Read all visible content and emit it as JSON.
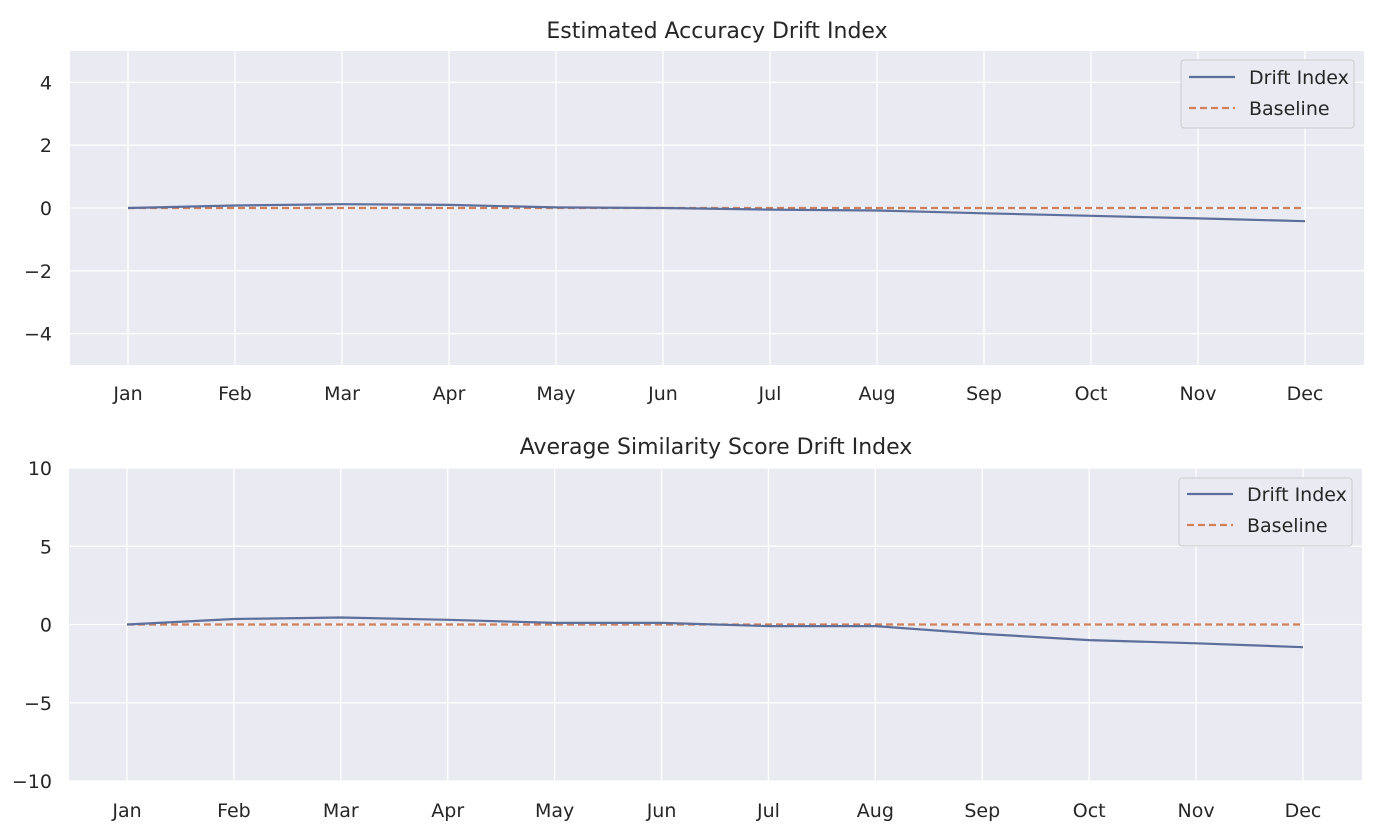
{
  "chart_data": [
    {
      "type": "line",
      "title": "Estimated Accuracy Drift Index",
      "xlabel": "",
      "ylabel": "",
      "categories": [
        "Jan",
        "Feb",
        "Mar",
        "Apr",
        "May",
        "Jun",
        "Jul",
        "Aug",
        "Sep",
        "Oct",
        "Nov",
        "Dec"
      ],
      "ylim": [
        -5,
        5
      ],
      "yticks": [
        4,
        2,
        0,
        -2,
        -4
      ],
      "ytick_labels": [
        "4",
        "2",
        "0",
        "−2",
        "−4"
      ],
      "grid": true,
      "legend_position": "top-right",
      "series": [
        {
          "name": "Drift Index",
          "color": "#5c6f9c",
          "style": "solid",
          "values": [
            0.0,
            0.08,
            0.12,
            0.1,
            0.02,
            0.0,
            -0.05,
            -0.08,
            -0.17,
            -0.25,
            -0.33,
            -0.42
          ]
        },
        {
          "name": "Baseline",
          "color": "#d1805a",
          "style": "dashed",
          "values": [
            0,
            0,
            0,
            0,
            0,
            0,
            0,
            0,
            0,
            0,
            0,
            0
          ]
        }
      ]
    },
    {
      "type": "line",
      "title": "Average Similarity Score Drift Index",
      "xlabel": "",
      "ylabel": "",
      "categories": [
        "Jan",
        "Feb",
        "Mar",
        "Apr",
        "May",
        "Jun",
        "Jul",
        "Aug",
        "Sep",
        "Oct",
        "Nov",
        "Dec"
      ],
      "ylim": [
        -10,
        10
      ],
      "yticks": [
        10,
        5,
        0,
        -5,
        -10
      ],
      "ytick_labels": [
        "10",
        "5",
        "0",
        "−5",
        "−10"
      ],
      "grid": true,
      "legend_position": "top-right",
      "series": [
        {
          "name": "Drift Index",
          "color": "#5c6f9c",
          "style": "solid",
          "values": [
            0.0,
            0.35,
            0.45,
            0.3,
            0.1,
            0.1,
            -0.1,
            -0.1,
            -0.6,
            -1.0,
            -1.2,
            -1.45
          ]
        },
        {
          "name": "Baseline",
          "color": "#d1805a",
          "style": "dashed",
          "values": [
            0,
            0,
            0,
            0,
            0,
            0,
            0,
            0,
            0,
            0,
            0,
            0
          ]
        }
      ]
    }
  ]
}
